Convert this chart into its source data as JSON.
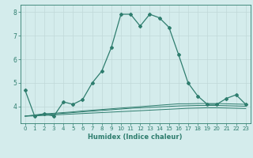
{
  "xlabel": "Humidex (Indice chaleur)",
  "x_values": [
    0,
    1,
    2,
    3,
    4,
    5,
    6,
    7,
    8,
    9,
    10,
    11,
    12,
    13,
    14,
    15,
    16,
    17,
    18,
    19,
    20,
    21,
    22,
    23
  ],
  "main_line": [
    4.7,
    3.6,
    3.7,
    3.6,
    4.2,
    4.1,
    4.3,
    5.0,
    5.5,
    6.5,
    7.9,
    7.9,
    7.4,
    7.9,
    7.75,
    7.35,
    6.2,
    5.0,
    4.45,
    4.1,
    4.1,
    4.35,
    4.5,
    4.1
  ],
  "line2": [
    3.6,
    3.65,
    3.7,
    3.72,
    3.75,
    3.78,
    3.82,
    3.85,
    3.88,
    3.91,
    3.94,
    3.97,
    4.0,
    4.03,
    4.06,
    4.09,
    4.12,
    4.12,
    4.13,
    4.13,
    4.13,
    4.12,
    4.11,
    4.1
  ],
  "line3": [
    3.6,
    3.63,
    3.66,
    3.69,
    3.72,
    3.75,
    3.78,
    3.81,
    3.84,
    3.87,
    3.9,
    3.93,
    3.95,
    3.97,
    3.99,
    4.01,
    4.03,
    4.04,
    4.05,
    4.05,
    4.05,
    4.04,
    4.03,
    4.02
  ],
  "line4": [
    3.6,
    3.61,
    3.63,
    3.65,
    3.67,
    3.69,
    3.71,
    3.73,
    3.75,
    3.77,
    3.79,
    3.81,
    3.83,
    3.85,
    3.87,
    3.89,
    3.91,
    3.93,
    3.94,
    3.95,
    3.95,
    3.94,
    3.93,
    3.92
  ],
  "line_color": "#2e7d6e",
  "bg_color": "#d4ecec",
  "grid_color_major": "#c0d8d8",
  "ylim": [
    3.3,
    8.3
  ],
  "xlim": [
    -0.5,
    23.5
  ],
  "yticks": [
    4,
    5,
    6,
    7,
    8
  ],
  "figsize": [
    3.2,
    2.0
  ],
  "dpi": 100
}
